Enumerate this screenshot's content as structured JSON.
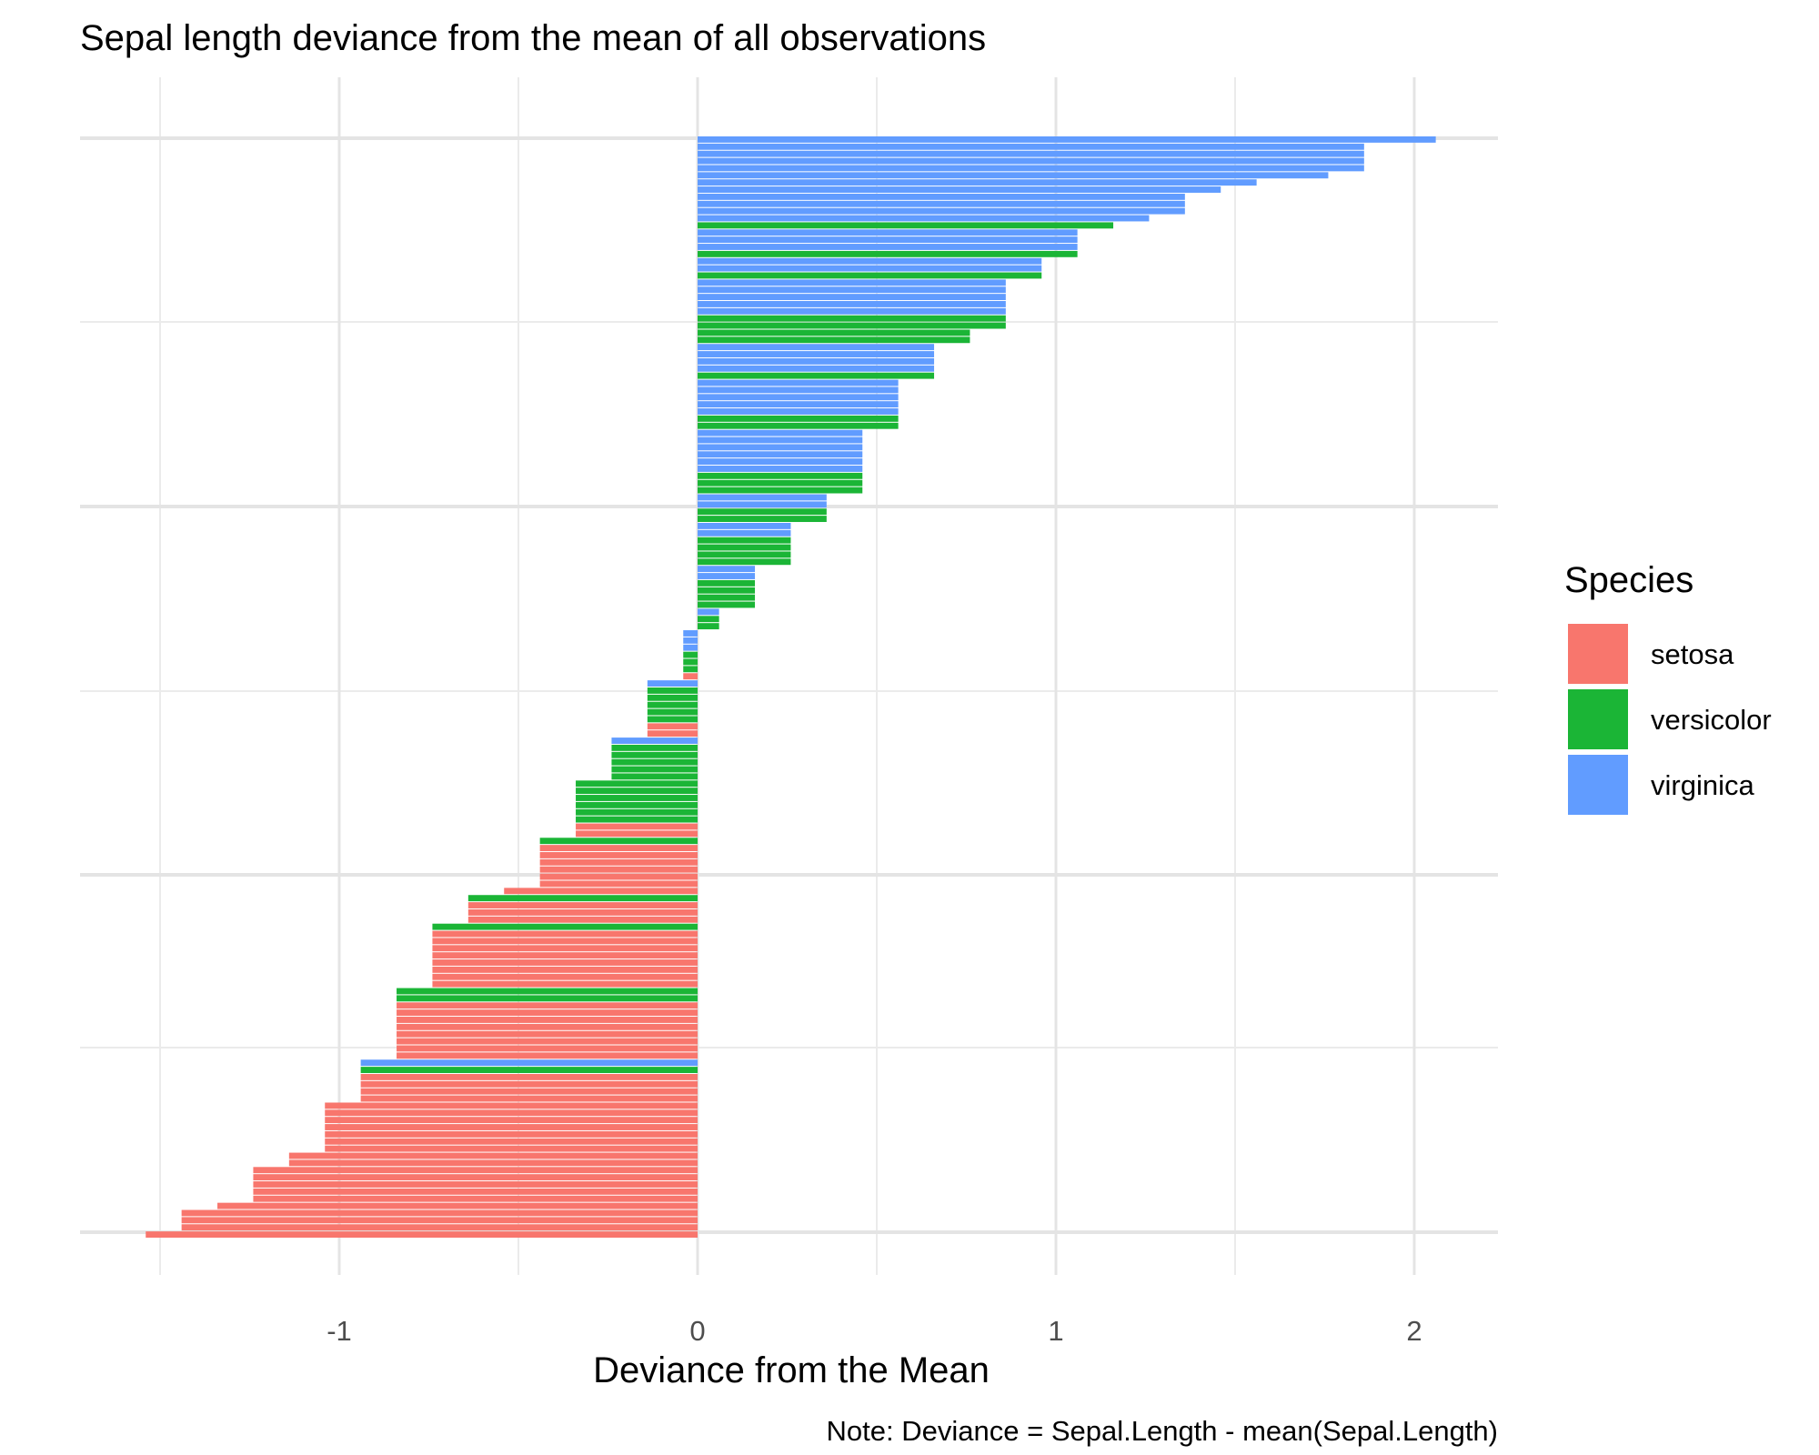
{
  "chart_data": {
    "type": "bar",
    "orientation": "horizontal",
    "title": "Sepal length deviance from the mean of all observations",
    "xlabel": "Deviance from the Mean",
    "ylabel": "",
    "caption": "Note: Deviance = Sepal.Length - mean(Sepal.Length)",
    "xlim": [
      -1.51,
      2.23
    ],
    "x_ticks": [
      -1,
      0,
      1,
      2
    ],
    "x_tick_labels": [
      "-1",
      "0",
      "1",
      "2"
    ],
    "grid": true,
    "legend": {
      "title": "Species",
      "position": "right",
      "entries": [
        {
          "name": "setosa",
          "color": "#F8766D"
        },
        {
          "name": "versicolor",
          "color": "#1BB536"
        },
        {
          "name": "virginica",
          "color": "#619CFF"
        }
      ]
    },
    "sort": "descending by deviance, top to bottom",
    "runs": [
      {
        "species": "virginica",
        "value": 2.06,
        "n": 1
      },
      {
        "species": "virginica",
        "value": 1.86,
        "n": 4
      },
      {
        "species": "virginica",
        "value": 1.76,
        "n": 1
      },
      {
        "species": "virginica",
        "value": 1.56,
        "n": 1
      },
      {
        "species": "virginica",
        "value": 1.46,
        "n": 1
      },
      {
        "species": "virginica",
        "value": 1.36,
        "n": 3
      },
      {
        "species": "virginica",
        "value": 1.26,
        "n": 1
      },
      {
        "species": "versicolor",
        "value": 1.16,
        "n": 1
      },
      {
        "species": "virginica",
        "value": 1.06,
        "n": 3
      },
      {
        "species": "versicolor",
        "value": 1.06,
        "n": 1
      },
      {
        "species": "virginica",
        "value": 0.96,
        "n": 2
      },
      {
        "species": "versicolor",
        "value": 0.96,
        "n": 1
      },
      {
        "species": "virginica",
        "value": 0.86,
        "n": 5
      },
      {
        "species": "versicolor",
        "value": 0.86,
        "n": 2
      },
      {
        "species": "versicolor",
        "value": 0.76,
        "n": 2
      },
      {
        "species": "virginica",
        "value": 0.66,
        "n": 4
      },
      {
        "species": "versicolor",
        "value": 0.66,
        "n": 1
      },
      {
        "species": "virginica",
        "value": 0.56,
        "n": 5
      },
      {
        "species": "versicolor",
        "value": 0.56,
        "n": 2
      },
      {
        "species": "virginica",
        "value": 0.46,
        "n": 6
      },
      {
        "species": "versicolor",
        "value": 0.46,
        "n": 3
      },
      {
        "species": "virginica",
        "value": 0.36,
        "n": 2
      },
      {
        "species": "versicolor",
        "value": 0.36,
        "n": 2
      },
      {
        "species": "virginica",
        "value": 0.26,
        "n": 2
      },
      {
        "species": "versicolor",
        "value": 0.26,
        "n": 4
      },
      {
        "species": "virginica",
        "value": 0.16,
        "n": 2
      },
      {
        "species": "versicolor",
        "value": 0.16,
        "n": 4
      },
      {
        "species": "virginica",
        "value": 0.06,
        "n": 1
      },
      {
        "species": "versicolor",
        "value": 0.06,
        "n": 2
      },
      {
        "species": "virginica",
        "value": -0.04,
        "n": 3
      },
      {
        "species": "versicolor",
        "value": -0.04,
        "n": 3
      },
      {
        "species": "setosa",
        "value": -0.04,
        "n": 1
      },
      {
        "species": "virginica",
        "value": -0.14,
        "n": 1
      },
      {
        "species": "versicolor",
        "value": -0.14,
        "n": 5
      },
      {
        "species": "setosa",
        "value": -0.14,
        "n": 2
      },
      {
        "species": "virginica",
        "value": -0.24,
        "n": 1
      },
      {
        "species": "versicolor",
        "value": -0.24,
        "n": 5
      },
      {
        "species": "versicolor",
        "value": -0.34,
        "n": 6
      },
      {
        "species": "setosa",
        "value": -0.34,
        "n": 2
      },
      {
        "species": "versicolor",
        "value": -0.44,
        "n": 1
      },
      {
        "species": "setosa",
        "value": -0.44,
        "n": 6
      },
      {
        "species": "setosa",
        "value": -0.54,
        "n": 1
      },
      {
        "species": "versicolor",
        "value": -0.64,
        "n": 1
      },
      {
        "species": "setosa",
        "value": -0.64,
        "n": 3
      },
      {
        "species": "versicolor",
        "value": -0.74,
        "n": 1
      },
      {
        "species": "setosa",
        "value": -0.74,
        "n": 8
      },
      {
        "species": "versicolor",
        "value": -0.84,
        "n": 2
      },
      {
        "species": "setosa",
        "value": -0.84,
        "n": 8
      },
      {
        "species": "virginica",
        "value": -0.94,
        "n": 1
      },
      {
        "species": "versicolor",
        "value": -0.94,
        "n": 1
      },
      {
        "species": "setosa",
        "value": -0.94,
        "n": 4
      },
      {
        "species": "setosa",
        "value": -1.04,
        "n": 7
      },
      {
        "species": "setosa",
        "value": -1.14,
        "n": 2
      },
      {
        "species": "setosa",
        "value": -1.24,
        "n": 5
      },
      {
        "species": "setosa",
        "value": -1.34,
        "n": 1
      },
      {
        "species": "setosa",
        "value": -1.44,
        "n": 3
      },
      {
        "species": "setosa",
        "value": -1.54,
        "n": 1
      }
    ]
  }
}
